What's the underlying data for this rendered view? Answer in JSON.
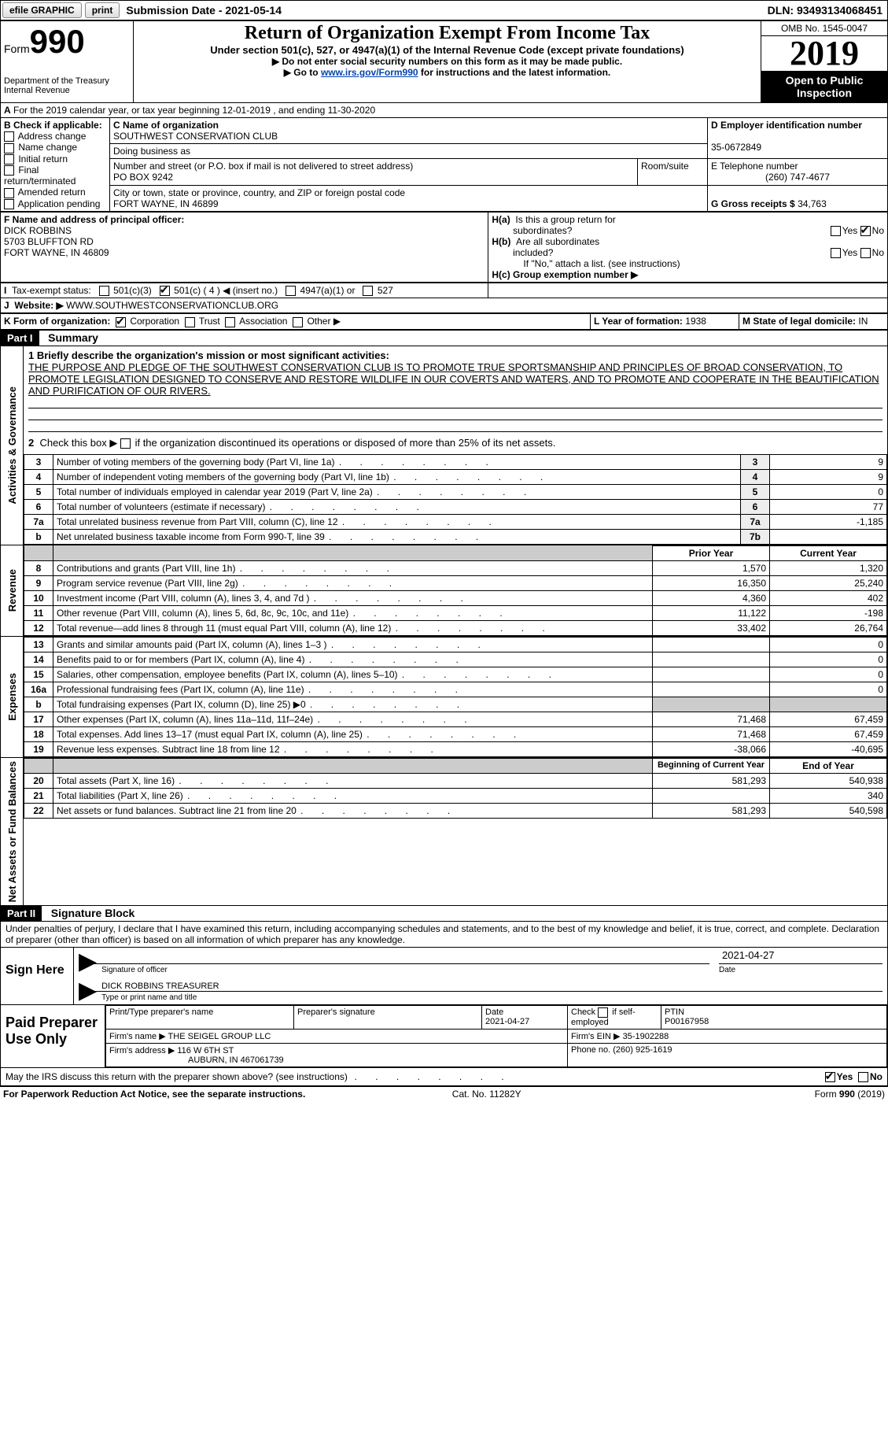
{
  "topbar": {
    "efile": "efile GRAPHIC",
    "print": "print",
    "submission": "Submission Date - 2021-05-14",
    "dln": "DLN: 93493134068451"
  },
  "header": {
    "form_label": "Form",
    "form_no": "990",
    "dept1": "Department of the Treasury",
    "dept2": "Internal Revenue",
    "title": "Return of Organization Exempt From Income Tax",
    "sub1": "Under section 501(c), 527, or 4947(a)(1) of the Internal Revenue Code (except private foundations)",
    "sub2": "▶ Do not enter social security numbers on this form as it may be made public.",
    "sub3_pre": "▶ Go to ",
    "sub3_link": "www.irs.gov/Form990",
    "sub3_post": " for instructions and the latest information.",
    "omb": "OMB No. 1545-0047",
    "year": "2019",
    "open": "Open to Public Inspection"
  },
  "rowA": "For the 2019 calendar year, or tax year beginning 12-01-2019   , and ending 11-30-2020",
  "boxB": {
    "title": "B Check if applicable:",
    "items": [
      "Address change",
      "Name change",
      "Initial return",
      "Final return/terminated",
      "Amended return",
      "Application pending"
    ]
  },
  "boxC": {
    "label_name": "C Name of organization",
    "name": "SOUTHWEST CONSERVATION CLUB",
    "dba_label": "Doing business as",
    "addr_label": "Number and street (or P.O. box if mail is not delivered to street address)",
    "room_label": "Room/suite",
    "addr": "PO BOX 9242",
    "city_label": "City or town, state or province, country, and ZIP or foreign postal code",
    "city": "FORT WAYNE, IN  46899"
  },
  "boxD": {
    "label": "D Employer identification number",
    "val": "35-0672849"
  },
  "boxE": {
    "label": "E Telephone number",
    "val": "(260) 747-4677"
  },
  "boxG": {
    "label": "G Gross receipts $",
    "val": "34,763"
  },
  "boxF": {
    "label": "F  Name and address of principal officer:",
    "name": "DICK ROBBINS",
    "addr1": "5703 BLUFFTON RD",
    "addr2": "FORT WAYNE, IN  46809"
  },
  "boxH": {
    "a": "H(a)  Is this a group return for subordinates?",
    "b": "H(b)  Are all subordinates included?",
    "b2": "If \"No,\" attach a list. (see instructions)",
    "c": "H(c)  Group exemption number ▶",
    "yes": "Yes",
    "no": "No"
  },
  "rowI": {
    "label": "Tax-exempt status:",
    "o1": "501(c)(3)",
    "o2": "501(c) ( 4 ) ◀ (insert no.)",
    "o3": "4947(a)(1) or",
    "o4": "527"
  },
  "rowJ": {
    "label": "Website: ▶",
    "val": "WWW.SOUTHWESTCONSERVATIONCLUB.ORG"
  },
  "rowK": {
    "label": "K Form of organization:",
    "o1": "Corporation",
    "o2": "Trust",
    "o3": "Association",
    "o4": "Other ▶"
  },
  "rowL": {
    "label": "L Year of formation:",
    "val": "1938"
  },
  "rowM": {
    "label": "M State of legal domicile:",
    "val": "IN"
  },
  "part1": {
    "tag": "Part I",
    "title": "Summary"
  },
  "mission": {
    "label": "1   Briefly describe the organization's mission or most significant activities:",
    "text": "THE PURPOSE AND PLEDGE OF THE SOUTHWEST CONSERVATION CLUB IS TO PROMOTE TRUE SPORTSMANSHIP AND PRINCIPLES OF BROAD CONSERVATION, TO PROMOTE LEGISLATION DESIGNED TO CONSERVE AND RESTORE WILDLIFE IN OUR COVERTS AND WATERS, AND TO PROMOTE AND COOPERATE IN THE BEAUTIFICATION AND PURIFICATION OF OUR RIVERS."
  },
  "sidebar": {
    "ag": "Activities & Governance",
    "rev": "Revenue",
    "exp": "Expenses",
    "net": "Net Assets or Fund Balances"
  },
  "line2": "Check this box ▶     if the organization discontinued its operations or disposed of more than 25% of its net assets.",
  "lines_ag": [
    {
      "n": "3",
      "t": "Number of voting members of the governing body (Part VI, line 1a)",
      "box": "3",
      "v": "9"
    },
    {
      "n": "4",
      "t": "Number of independent voting members of the governing body (Part VI, line 1b)",
      "box": "4",
      "v": "9"
    },
    {
      "n": "5",
      "t": "Total number of individuals employed in calendar year 2019 (Part V, line 2a)",
      "box": "5",
      "v": "0"
    },
    {
      "n": "6",
      "t": "Total number of volunteers (estimate if necessary)",
      "box": "6",
      "v": "77"
    },
    {
      "n": "7a",
      "t": "Total unrelated business revenue from Part VIII, column (C), line 12",
      "box": "7a",
      "v": "-1,185"
    },
    {
      "n": "b",
      "t": "Net unrelated business taxable income from Form 990-T, line 39",
      "box": "7b",
      "v": ""
    }
  ],
  "col_hdr": {
    "prior": "Prior Year",
    "current": "Current Year"
  },
  "lines_rev": [
    {
      "n": "8",
      "t": "Contributions and grants (Part VIII, line 1h)",
      "p": "1,570",
      "c": "1,320"
    },
    {
      "n": "9",
      "t": "Program service revenue (Part VIII, line 2g)",
      "p": "16,350",
      "c": "25,240"
    },
    {
      "n": "10",
      "t": "Investment income (Part VIII, column (A), lines 3, 4, and 7d )",
      "p": "4,360",
      "c": "402"
    },
    {
      "n": "11",
      "t": "Other revenue (Part VIII, column (A), lines 5, 6d, 8c, 9c, 10c, and 11e)",
      "p": "11,122",
      "c": "-198"
    },
    {
      "n": "12",
      "t": "Total revenue—add lines 8 through 11 (must equal Part VIII, column (A), line 12)",
      "p": "33,402",
      "c": "26,764"
    }
  ],
  "lines_exp": [
    {
      "n": "13",
      "t": "Grants and similar amounts paid (Part IX, column (A), lines 1–3 )",
      "p": "",
      "c": "0"
    },
    {
      "n": "14",
      "t": "Benefits paid to or for members (Part IX, column (A), line 4)",
      "p": "",
      "c": "0"
    },
    {
      "n": "15",
      "t": "Salaries, other compensation, employee benefits (Part IX, column (A), lines 5–10)",
      "p": "",
      "c": "0"
    },
    {
      "n": "16a",
      "t": "Professional fundraising fees (Part IX, column (A), line 11e)",
      "p": "",
      "c": "0"
    },
    {
      "n": "b",
      "t": "Total fundraising expenses (Part IX, column (D), line 25) ▶0",
      "p": "shade",
      "c": "shade"
    },
    {
      "n": "17",
      "t": "Other expenses (Part IX, column (A), lines 11a–11d, 11f–24e)",
      "p": "71,468",
      "c": "67,459"
    },
    {
      "n": "18",
      "t": "Total expenses. Add lines 13–17 (must equal Part IX, column (A), line 25)",
      "p": "71,468",
      "c": "67,459"
    },
    {
      "n": "19",
      "t": "Revenue less expenses. Subtract line 18 from line 12",
      "p": "-38,066",
      "c": "-40,695"
    }
  ],
  "col_hdr2": {
    "prior": "Beginning of Current Year",
    "current": "End of Year"
  },
  "lines_net": [
    {
      "n": "20",
      "t": "Total assets (Part X, line 16)",
      "p": "581,293",
      "c": "540,938"
    },
    {
      "n": "21",
      "t": "Total liabilities (Part X, line 26)",
      "p": "",
      "c": "340"
    },
    {
      "n": "22",
      "t": "Net assets or fund balances. Subtract line 21 from line 20",
      "p": "581,293",
      "c": "540,598"
    }
  ],
  "part2": {
    "tag": "Part II",
    "title": "Signature Block"
  },
  "sig": {
    "decl": "Under penalties of perjury, I declare that I have examined this return, including accompanying schedules and statements, and to the best of my knowledge and belief, it is true, correct, and complete. Declaration of preparer (other than officer) is based on all information of which preparer has any knowledge.",
    "sign_here": "Sign Here",
    "sig_officer": "Signature of officer",
    "date": "Date",
    "date_val": "2021-04-27",
    "name": "DICK ROBBINS TREASURER",
    "name_label": "Type or print name and title"
  },
  "prep": {
    "title": "Paid Preparer Use Only",
    "h1": "Print/Type preparer's name",
    "h2": "Preparer's signature",
    "h3": "Date",
    "h3v": "2021-04-27",
    "h4": "Check      if self-employed",
    "h5": "PTIN",
    "h5v": "P00167958",
    "firm_label": "Firm's name   ▶",
    "firm": "THE SEIGEL GROUP LLC",
    "ein_label": "Firm's EIN ▶",
    "ein": "35-1902288",
    "addr_label": "Firm's address ▶",
    "addr1": "116 W 6TH ST",
    "addr2": "AUBURN, IN  467061739",
    "phone_label": "Phone no.",
    "phone": "(260) 925-1619"
  },
  "may_irs": "May the IRS discuss this return with the preparer shown above? (see instructions)",
  "footer": {
    "l": "For Paperwork Reduction Act Notice, see the separate instructions.",
    "m": "Cat. No. 11282Y",
    "r": "Form 990 (2019)"
  }
}
